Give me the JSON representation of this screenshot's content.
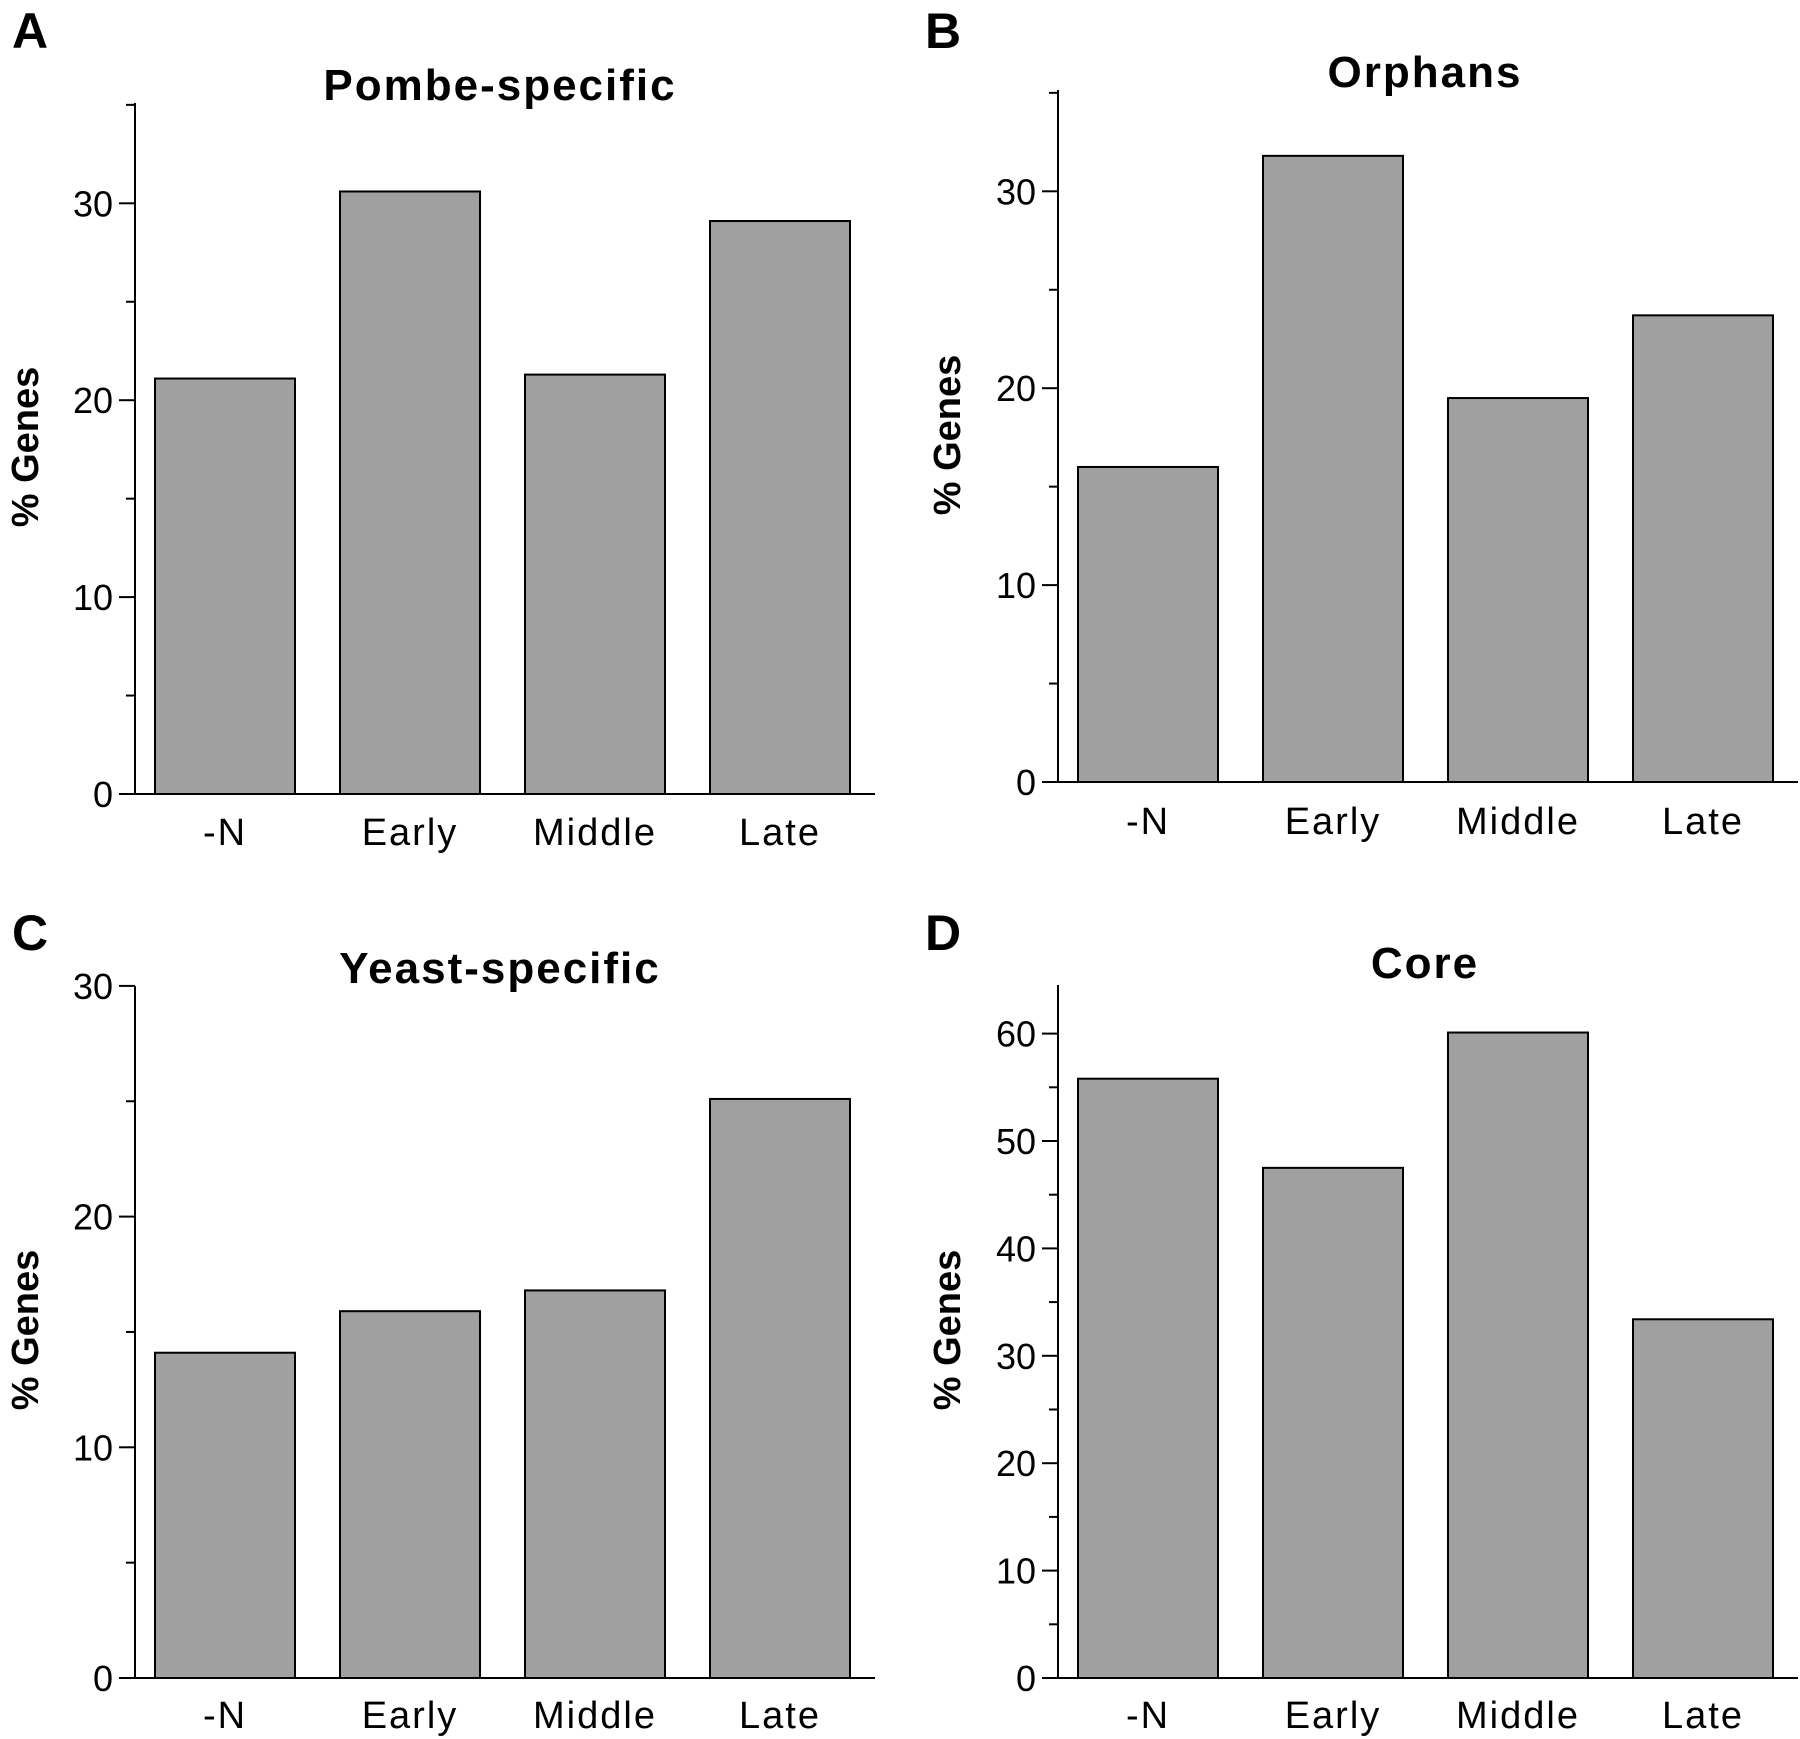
{
  "chart_data": [
    {
      "type": "bar",
      "panel": "A",
      "title": "Pombe-specific",
      "xlabel": "",
      "ylabel": "% Genes",
      "categories": [
        "-N",
        "Early",
        "Middle",
        "Late"
      ],
      "values": [
        21.1,
        30.6,
        21.3,
        29.1
      ],
      "ylim": [
        0,
        35
      ],
      "yticks": [
        0,
        10,
        20,
        30
      ],
      "grid": false
    },
    {
      "type": "bar",
      "panel": "B",
      "title": "Orphans",
      "xlabel": "",
      "ylabel": "% Genes",
      "categories": [
        "-N",
        "Early",
        "Middle",
        "Late"
      ],
      "values": [
        16.0,
        31.8,
        19.5,
        23.7
      ],
      "ylim": [
        0,
        35
      ],
      "yticks": [
        0,
        10,
        20,
        30
      ],
      "grid": false
    },
    {
      "type": "bar",
      "panel": "C",
      "title": "Yeast-specific",
      "xlabel": "",
      "ylabel": "% Genes",
      "categories": [
        "-N",
        "Early",
        "Middle",
        "Late"
      ],
      "values": [
        14.1,
        15.9,
        16.8,
        25.1
      ],
      "ylim": [
        0,
        30
      ],
      "yticks": [
        0,
        10,
        20,
        30
      ],
      "grid": false
    },
    {
      "type": "bar",
      "panel": "D",
      "title": "Core",
      "xlabel": "",
      "ylabel": "% Genes",
      "categories": [
        "-N",
        "Early",
        "Middle",
        "Late"
      ],
      "values": [
        55.8,
        47.5,
        60.1,
        33.4
      ],
      "ylim": [
        0,
        65
      ],
      "yticks": [
        0,
        10,
        20,
        30,
        40,
        50,
        60
      ],
      "grid": false
    }
  ]
}
